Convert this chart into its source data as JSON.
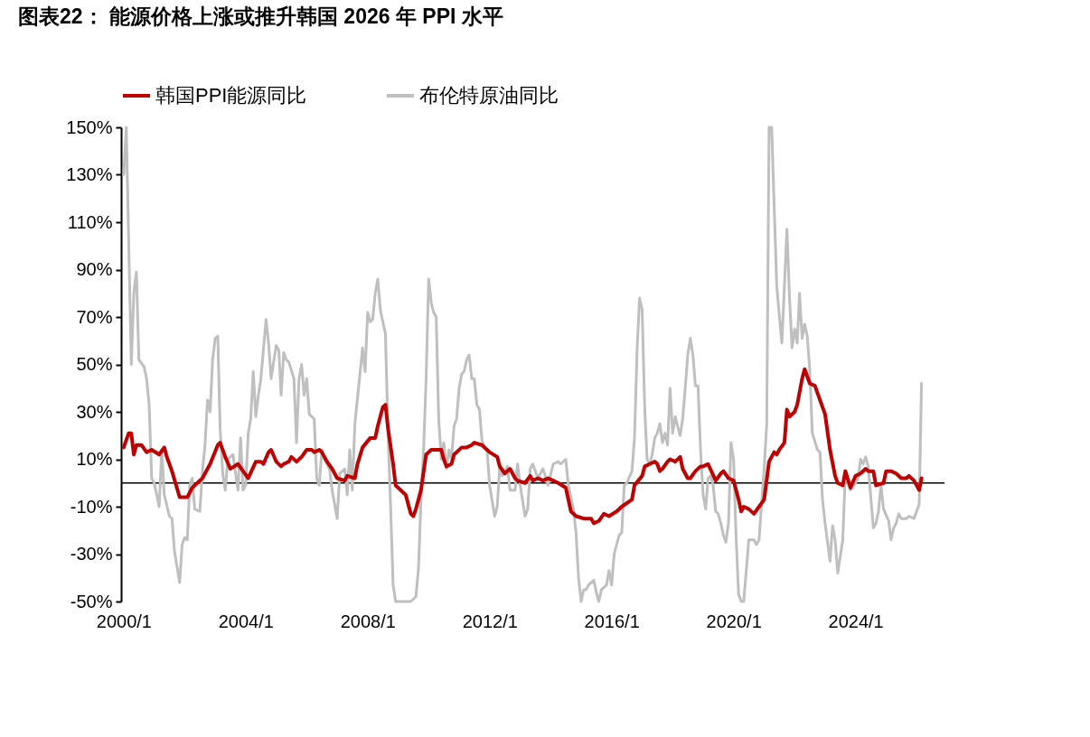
{
  "chart_data": {
    "type": "line",
    "title": "图表22：  能源价格上涨或推升韩国 2026 年 PPI 水平",
    "legend": "top",
    "grid": false,
    "line_style": "solid",
    "marker": "none",
    "xlim": [
      "1999-12",
      "2026-12"
    ],
    "xticks": [
      {
        "value": "2000-01",
        "label": "2000/1"
      },
      {
        "value": "2004-01",
        "label": "2004/1"
      },
      {
        "value": "2008-01",
        "label": "2008/1"
      },
      {
        "value": "2012-01",
        "label": "2012/1"
      },
      {
        "value": "2016-01",
        "label": "2016/1"
      },
      {
        "value": "2020-01",
        "label": "2020/1"
      },
      {
        "value": "2024-01",
        "label": "2024/1"
      }
    ],
    "ylim": [
      -50,
      150
    ],
    "yticks": [
      {
        "value": -50,
        "label": "-50%"
      },
      {
        "value": -30,
        "label": "-30%"
      },
      {
        "value": -10,
        "label": "-10%"
      },
      {
        "value": 10,
        "label": "10%"
      },
      {
        "value": 30,
        "label": "30%"
      },
      {
        "value": 50,
        "label": "50%"
      },
      {
        "value": 70,
        "label": "70%"
      },
      {
        "value": 90,
        "label": "90%"
      },
      {
        "value": 110,
        "label": "110%"
      },
      {
        "value": 130,
        "label": "130%"
      },
      {
        "value": 150,
        "label": "150%"
      }
    ],
    "ref_lines": [
      {
        "axis": "y",
        "value": 0,
        "color": "#000000"
      }
    ],
    "series": [
      {
        "name": "韩国PPI能源同比",
        "color": "#c00000",
        "x": [
          "2000-01",
          "2000-03",
          "2000-04",
          "2000-05",
          "2000-06",
          "2000-08",
          "2000-10",
          "2000-12",
          "2001-03",
          "2001-05",
          "2001-06",
          "2001-08",
          "2001-11",
          "2002-02",
          "2002-04",
          "2002-08",
          "2002-11",
          "2003-02",
          "2003-03",
          "2003-05",
          "2003-07",
          "2003-10",
          "2003-12",
          "2004-02",
          "2004-05",
          "2004-07",
          "2004-08",
          "2004-10",
          "2004-11",
          "2005-01",
          "2005-03",
          "2005-04",
          "2005-06",
          "2005-07",
          "2005-09",
          "2005-11",
          "2006-01",
          "2006-03",
          "2006-04",
          "2006-06",
          "2006-07",
          "2006-09",
          "2006-11",
          "2007-01",
          "2007-04",
          "2007-05",
          "2007-08",
          "2007-09",
          "2007-11",
          "2008-02",
          "2008-04",
          "2008-05",
          "2008-07",
          "2008-08",
          "2008-09",
          "2008-11",
          "2008-12",
          "2009-03",
          "2009-04",
          "2009-06",
          "2009-07",
          "2009-08",
          "2009-10",
          "2009-12",
          "2010-02",
          "2010-04",
          "2010-06",
          "2010-07",
          "2010-08",
          "2010-10",
          "2010-11",
          "2011-02",
          "2011-04",
          "2011-06",
          "2011-07",
          "2011-10",
          "2011-12",
          "2012-01",
          "2012-04",
          "2012-05",
          "2012-07",
          "2012-09",
          "2012-11",
          "2012-12",
          "2013-03",
          "2013-05",
          "2013-06",
          "2013-08",
          "2013-10",
          "2013-12",
          "2014-02",
          "2014-04",
          "2014-07",
          "2014-09",
          "2014-11",
          "2015-02",
          "2015-05",
          "2015-06",
          "2015-08",
          "2015-10",
          "2015-12",
          "2016-03",
          "2016-05",
          "2016-09",
          "2016-10",
          "2017-01",
          "2017-02",
          "2017-04",
          "2017-06",
          "2017-07",
          "2017-08",
          "2017-09",
          "2017-11",
          "2017-12",
          "2018-02",
          "2018-04",
          "2018-05",
          "2018-07",
          "2018-08",
          "2018-10",
          "2018-12",
          "2019-01",
          "2019-03",
          "2019-06",
          "2019-08",
          "2019-09",
          "2019-11",
          "2020-01",
          "2020-03",
          "2020-04",
          "2020-05",
          "2020-07",
          "2020-09",
          "2020-11",
          "2021-01",
          "2021-03",
          "2021-05",
          "2021-06",
          "2021-07",
          "2021-09",
          "2021-10",
          "2021-11",
          "2022-01",
          "2022-02",
          "2022-04",
          "2022-05",
          "2022-07",
          "2022-09",
          "2022-11",
          "2023-01",
          "2023-03",
          "2023-05",
          "2023-06",
          "2023-08",
          "2023-09",
          "2023-11",
          "2024-01",
          "2024-03",
          "2024-05",
          "2024-06",
          "2024-08",
          "2024-09",
          "2024-12",
          "2025-01",
          "2025-03",
          "2025-05",
          "2025-07",
          "2025-09",
          "2025-10",
          "2025-12",
          "2026-02",
          "2026-03"
        ],
        "values": [
          15,
          21,
          21,
          12,
          16,
          16,
          13,
          14,
          12,
          15,
          11,
          5,
          -6,
          -6,
          -2,
          2,
          8,
          16,
          17,
          11,
          6,
          8,
          5,
          2,
          9,
          9,
          8,
          13,
          14,
          9,
          7,
          8,
          9,
          11,
          9,
          11,
          14,
          14,
          13,
          14,
          13,
          9,
          6,
          2,
          1,
          3,
          2,
          8,
          15,
          19,
          19,
          24,
          32,
          33,
          23,
          8,
          -1,
          -4,
          -5,
          -13,
          -14,
          -11,
          -3,
          12,
          14,
          14,
          14,
          10,
          7,
          8,
          12,
          15,
          15,
          16,
          17,
          16,
          14,
          13,
          11,
          7,
          4,
          6,
          2,
          1,
          0,
          3,
          1,
          2,
          1,
          2,
          1,
          0,
          -2,
          -12,
          -14,
          -15,
          -15,
          -17,
          -16,
          -13,
          -14,
          -12,
          -10,
          -7,
          -1,
          3,
          7,
          8,
          9,
          8,
          5,
          6,
          9,
          10,
          9,
          11,
          6,
          2,
          2,
          5,
          7,
          7,
          8,
          1,
          4,
          5,
          2,
          1,
          -7,
          -12,
          -10,
          -11,
          -13,
          -10,
          -7,
          9,
          13,
          12,
          14,
          17,
          31,
          28,
          30,
          33,
          44,
          48,
          42,
          41,
          35,
          29,
          14,
          3,
          0,
          -1,
          5,
          -2,
          3,
          4,
          6,
          5,
          5,
          -1,
          0,
          5,
          5,
          4,
          2,
          2,
          3,
          1,
          -3,
          2
        ]
      },
      {
        "name": "布伦特原油同比",
        "color": "#bfbfbf",
        "x": [
          "2000-01",
          "2000-02",
          "2000-04",
          "2000-05",
          "2000-06",
          "2000-07",
          "2000-09",
          "2000-10",
          "2000-11",
          "2000-12",
          "2001-01",
          "2001-03",
          "2001-04",
          "2001-05",
          "2001-07",
          "2001-08",
          "2001-09",
          "2001-11",
          "2001-12",
          "2002-01",
          "2002-02",
          "2002-03",
          "2002-04",
          "2002-05",
          "2002-07",
          "2002-08",
          "2002-09",
          "2002-10",
          "2002-11",
          "2002-12",
          "2003-01",
          "2003-02",
          "2003-03",
          "2003-04",
          "2003-05",
          "2003-06",
          "2003-07",
          "2003-08",
          "2003-10",
          "2003-11",
          "2003-12",
          "2004-01",
          "2004-02",
          "2004-03",
          "2004-04",
          "2004-05",
          "2004-06",
          "2004-07",
          "2004-09",
          "2004-10",
          "2004-11",
          "2004-12",
          "2005-01",
          "2005-02",
          "2005-03",
          "2005-04",
          "2005-05",
          "2005-06",
          "2005-08",
          "2005-09",
          "2005-10",
          "2005-11",
          "2005-12",
          "2006-01",
          "2006-02",
          "2006-04",
          "2006-05",
          "2006-06",
          "2006-07",
          "2006-08",
          "2006-10",
          "2006-11",
          "2007-01",
          "2007-02",
          "2007-04",
          "2007-05",
          "2007-06",
          "2007-07",
          "2007-08",
          "2007-10",
          "2007-11",
          "2007-12",
          "2008-01",
          "2008-02",
          "2008-03",
          "2008-04",
          "2008-05",
          "2008-06",
          "2008-08",
          "2008-09",
          "2008-10",
          "2008-11",
          "2008-12",
          "2009-06",
          "2009-08",
          "2009-09",
          "2009-10",
          "2009-11",
          "2009-12",
          "2010-01",
          "2010-02",
          "2010-03",
          "2010-04",
          "2010-05",
          "2010-06",
          "2010-07",
          "2010-08",
          "2010-09",
          "2010-10",
          "2010-11",
          "2010-12",
          "2011-01",
          "2011-02",
          "2011-03",
          "2011-04",
          "2011-05",
          "2011-06",
          "2011-07",
          "2011-08",
          "2011-09",
          "2011-10",
          "2011-11",
          "2011-12",
          "2012-01",
          "2012-03",
          "2012-04",
          "2012-05",
          "2012-06",
          "2012-08",
          "2012-09",
          "2012-11",
          "2012-12",
          "2013-01",
          "2013-03",
          "2013-04",
          "2013-05",
          "2013-06",
          "2013-08",
          "2013-10",
          "2013-12",
          "2014-02",
          "2014-04",
          "2014-05",
          "2014-07",
          "2014-08",
          "2014-10",
          "2014-11",
          "2014-12",
          "2015-01",
          "2015-02",
          "2015-03",
          "2015-04",
          "2015-06",
          "2015-07",
          "2015-08",
          "2015-09",
          "2015-11",
          "2015-12",
          "2016-01",
          "2016-02",
          "2016-03",
          "2016-04",
          "2016-05",
          "2016-06",
          "2016-07",
          "2016-09",
          "2016-10",
          "2016-11",
          "2016-12",
          "2017-01",
          "2017-02",
          "2017-03",
          "2017-04",
          "2017-05",
          "2017-06",
          "2017-07",
          "2017-08",
          "2017-09",
          "2017-10",
          "2017-11",
          "2017-12",
          "2018-01",
          "2018-02",
          "2018-03",
          "2018-04",
          "2018-05",
          "2018-06",
          "2018-07",
          "2018-08",
          "2018-09",
          "2018-10",
          "2018-11",
          "2018-12",
          "2019-01",
          "2019-02",
          "2019-03",
          "2019-04",
          "2019-05",
          "2019-06",
          "2019-07",
          "2019-08",
          "2019-09",
          "2019-10",
          "2019-11",
          "2019-12",
          "2020-01",
          "2020-02",
          "2020-03",
          "2020-04",
          "2020-05",
          "2020-06",
          "2020-07",
          "2020-08",
          "2020-09",
          "2020-10",
          "2020-11",
          "2020-12",
          "2021-01",
          "2021-02",
          "2021-03",
          "2021-04",
          "2021-06",
          "2021-07",
          "2021-08",
          "2021-10",
          "2021-11",
          "2021-12",
          "2022-01",
          "2022-02",
          "2022-03",
          "2022-04",
          "2022-05",
          "2022-06",
          "2022-07",
          "2022-08",
          "2022-10",
          "2022-11",
          "2022-12",
          "2023-01",
          "2023-03",
          "2023-04",
          "2023-05",
          "2023-06",
          "2023-08",
          "2023-09",
          "2023-10",
          "2023-11",
          "2024-01",
          "2024-02",
          "2024-03",
          "2024-04",
          "2024-05",
          "2024-06",
          "2024-08",
          "2024-09",
          "2024-10",
          "2024-11",
          "2024-12",
          "2025-02",
          "2025-03",
          "2025-04",
          "2025-05",
          "2025-06",
          "2025-07",
          "2025-09",
          "2025-10",
          "2025-12",
          "2026-02",
          "2026-03"
        ],
        "values": [
          130,
          150,
          50,
          80,
          89,
          52,
          49,
          44,
          33,
          2,
          0,
          -10,
          14,
          -5,
          -14,
          -15,
          -29,
          -42,
          -26,
          -23,
          -24,
          -1,
          2,
          -11,
          -12,
          5,
          16,
          35,
          30,
          52,
          61,
          62,
          23,
          4,
          -3,
          10,
          11,
          12,
          -3,
          19,
          -3,
          -1,
          21,
          27,
          47,
          28,
          37,
          44,
          69,
          59,
          44,
          51,
          58,
          56,
          37,
          55,
          52,
          51,
          44,
          17,
          44,
          50,
          37,
          44,
          29,
          27,
          2,
          -1,
          14,
          10,
          6,
          -3,
          -15,
          4,
          6,
          -5,
          14,
          -3,
          25,
          46,
          57,
          47,
          72,
          68,
          69,
          80,
          86,
          73,
          63,
          21,
          -9,
          -43,
          -50,
          -50,
          -48,
          -36,
          -7,
          14,
          44,
          86,
          76,
          72,
          70,
          27,
          10,
          17,
          6,
          14,
          10,
          24,
          27,
          40,
          46,
          47,
          52,
          54,
          44,
          44,
          33,
          31,
          18,
          15,
          14,
          -1,
          -14,
          -10,
          7,
          3,
          7,
          -3,
          -3,
          8,
          -1,
          -14,
          -11,
          6,
          8,
          2,
          6,
          -1,
          8,
          9,
          8,
          10,
          -1,
          -11,
          -21,
          -40,
          -50,
          -45,
          -45,
          -43,
          -41,
          -46,
          -50,
          -45,
          -43,
          -37,
          -43,
          -30,
          -26,
          -22,
          -21,
          -1,
          0,
          5,
          19,
          56,
          78,
          73,
          31,
          10,
          8,
          12,
          19,
          21,
          25,
          17,
          21,
          16,
          40,
          21,
          28,
          24,
          20,
          27,
          40,
          54,
          61,
          54,
          41,
          41,
          14,
          -5,
          -11,
          2,
          3,
          -1,
          -12,
          -13,
          -17,
          -22,
          -25,
          -17,
          17,
          10,
          -24,
          -47,
          -50,
          -50,
          -37,
          -24,
          -24,
          -24,
          -26,
          -24,
          -9,
          6,
          25,
          150,
          150,
          83,
          71,
          59,
          107,
          78,
          57,
          65,
          59,
          80,
          61,
          67,
          62,
          48,
          21,
          14,
          13,
          -7,
          -17,
          -33,
          -18,
          -24,
          -38,
          -24,
          5,
          0,
          -3,
          0,
          2,
          10,
          8,
          11,
          7,
          -19,
          -17,
          -12,
          -1,
          -11,
          -16,
          -24,
          -19,
          -17,
          -13,
          -15,
          -15,
          -14,
          -15,
          -9,
          42
        ]
      }
    ]
  }
}
